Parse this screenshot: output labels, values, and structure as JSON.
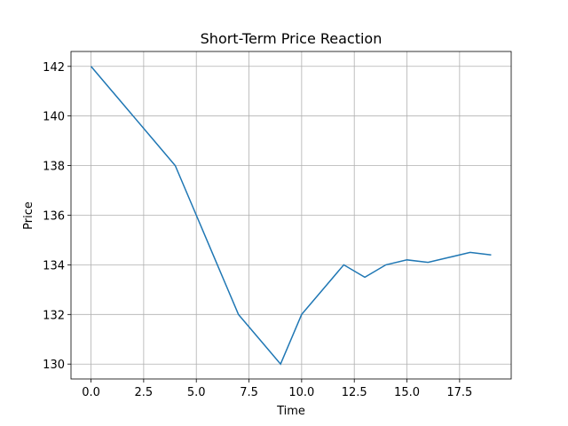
{
  "chart_data": {
    "type": "line",
    "title": "Short-Term Price Reaction",
    "xlabel": "Time",
    "ylabel": "Price",
    "x": [
      0,
      1,
      2,
      3,
      4,
      5,
      6,
      7,
      8,
      9,
      10,
      11,
      12,
      13,
      14,
      15,
      16,
      17,
      18,
      19
    ],
    "series": [
      {
        "color": "#1f77b4",
        "values": [
          142,
          141,
          140,
          139,
          138,
          136,
          134,
          132,
          131,
          130,
          132,
          133,
          134,
          133.5,
          134,
          134.2,
          134.1,
          134.3,
          134.5,
          134.4
        ]
      }
    ],
    "xlim": [
      -0.95,
      19.95
    ],
    "xticks": [
      {
        "value": 0,
        "label": "0.0"
      },
      {
        "value": 2.5,
        "label": "2.5"
      },
      {
        "value": 5,
        "label": "5.0"
      },
      {
        "value": 7.5,
        "label": "7.5"
      },
      {
        "value": 10,
        "label": "10.0"
      },
      {
        "value": 12.5,
        "label": "12.5"
      },
      {
        "value": 15,
        "label": "15.0"
      },
      {
        "value": 17.5,
        "label": "17.5"
      }
    ],
    "ylim": [
      129.4,
      142.6
    ],
    "yticks": [
      130,
      132,
      134,
      136,
      138,
      140,
      142
    ],
    "grid": true
  }
}
